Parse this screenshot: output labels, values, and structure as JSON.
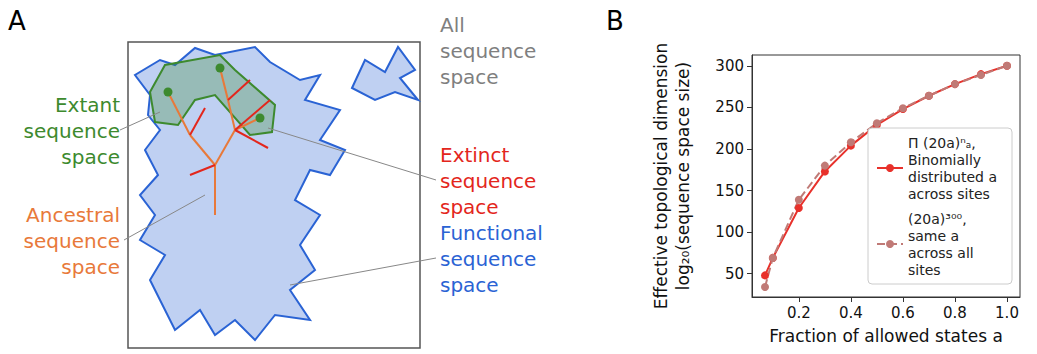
{
  "panel_labels": [
    "A",
    "B"
  ],
  "diagram": {
    "labels": [
      {
        "lines": [
          "Extant",
          "sequence",
          "space"
        ],
        "color": "#3d8a2e"
      },
      {
        "lines": [
          "Ancestral",
          "sequence",
          "space"
        ],
        "color": "#e8793a"
      },
      {
        "lines": [
          "All",
          "sequence",
          "space"
        ],
        "color": "#7f7f7f"
      },
      {
        "lines": [
          "Extinct",
          "sequence",
          "space"
        ],
        "color": "#e3261c"
      },
      {
        "lines": [
          "Functional",
          "sequence",
          "space"
        ],
        "color": "#2a63d4"
      }
    ]
  },
  "chart_data": {
    "type": "line",
    "x_label": "Fraction of allowed states a",
    "y_label": [
      "Effective topological dimension",
      "log₂₀(sequence space size)"
    ],
    "x": [
      0.07,
      0.1,
      0.2,
      0.3,
      0.4,
      0.5,
      0.6,
      0.7,
      0.8,
      0.9,
      1.0
    ],
    "series": [
      {
        "name": "Π (20a)ⁿₐ, Binomially distributed a across sites",
        "color": "#e8312b",
        "values": [
          48,
          69,
          129,
          173,
          204,
          229,
          248,
          264,
          278,
          290,
          300
        ],
        "marker": "circle",
        "line_style": "solid"
      },
      {
        "name": "(20a)³⁰⁰, same a across all sites",
        "color": "#c07a76",
        "values": [
          34,
          69,
          139,
          180,
          208,
          231,
          249,
          264,
          278,
          289,
          300
        ],
        "marker": "circle",
        "line_style": "dashed"
      }
    ],
    "xlim": [
      0.02,
      1.05
    ],
    "ylim": [
      22,
      313
    ],
    "xticks": [
      0.2,
      0.4,
      0.6,
      0.8,
      {
        "value": 1,
        "label": "1.0"
      }
    ],
    "yticks": [
      50,
      100,
      150,
      200,
      250,
      300
    ],
    "grid": false,
    "legend": "lower right"
  }
}
